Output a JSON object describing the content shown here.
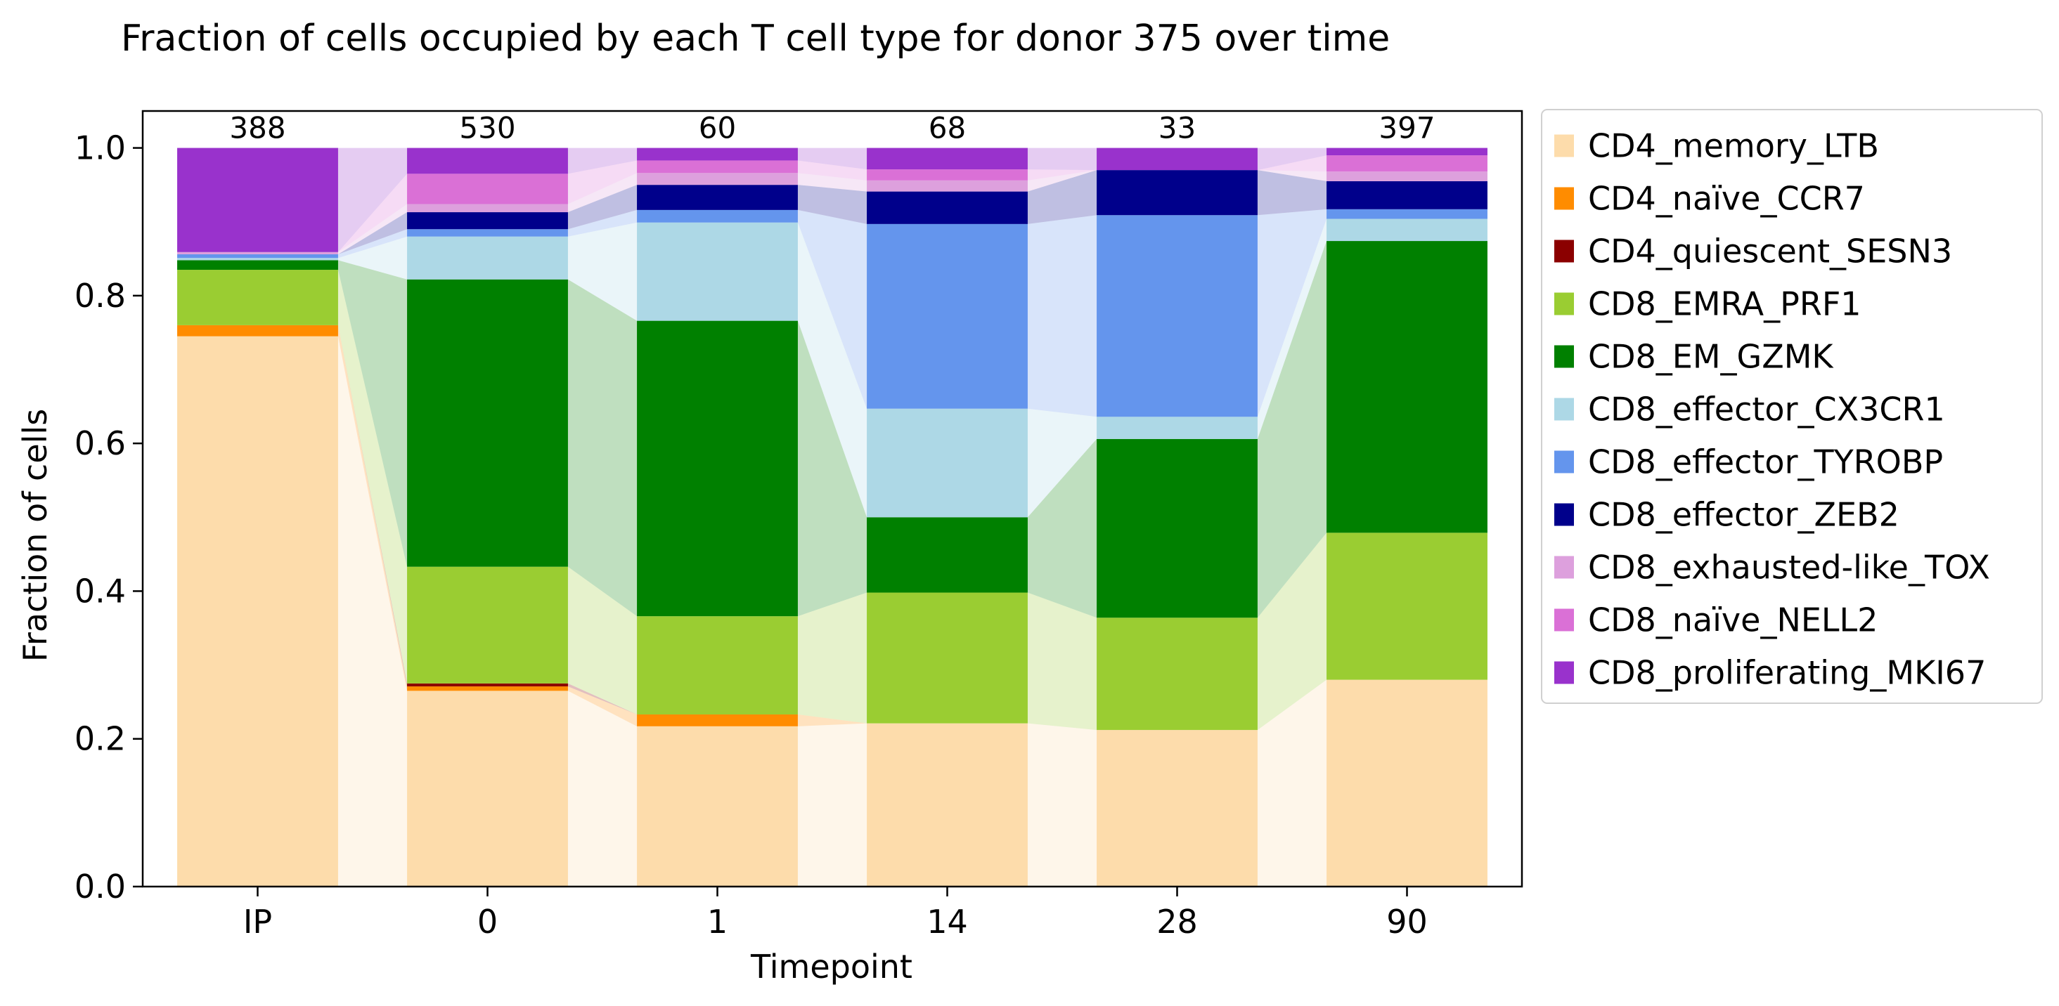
{
  "chart_data": {
    "type": "bar",
    "stacked": true,
    "title": "Fraction of cells occupied by each T cell type for donor 375 over time",
    "xlabel": "Timepoint",
    "ylabel": "Fraction of cells",
    "ylim": [
      0,
      1.05
    ],
    "yticks": [
      "0.0",
      "0.2",
      "0.4",
      "0.6",
      "0.8",
      "1.0"
    ],
    "categories": [
      "IP",
      "0",
      "1",
      "14",
      "28",
      "90"
    ],
    "counts": [
      "388",
      "530",
      "60",
      "68",
      "33",
      "397"
    ],
    "legend_position": "outside-right",
    "series": [
      {
        "name": "CD4_memory_LTB",
        "color": "#FDDCAB",
        "values": [
          0.745,
          0.265,
          0.217,
          0.221,
          0.212,
          0.28
        ]
      },
      {
        "name": "CD4_naïve_CCR7",
        "color": "#FF8C00",
        "values": [
          0.015,
          0.006,
          0.016,
          0.0,
          0.0,
          0.0
        ]
      },
      {
        "name": "CD4_quiescent_SESN3",
        "color": "#8B0000",
        "values": [
          0.0,
          0.004,
          0.0,
          0.0,
          0.0,
          0.0
        ]
      },
      {
        "name": "CD8_EMRA_PRF1",
        "color": "#9ACD32",
        "values": [
          0.075,
          0.158,
          0.133,
          0.177,
          0.152,
          0.199
        ]
      },
      {
        "name": "CD8_EM_GZMK",
        "color": "#008000",
        "values": [
          0.013,
          0.389,
          0.4,
          0.102,
          0.242,
          0.395
        ]
      },
      {
        "name": "CD8_effector_CX3CR1",
        "color": "#ADD8E6",
        "values": [
          0.003,
          0.058,
          0.133,
          0.147,
          0.03,
          0.03
        ]
      },
      {
        "name": "CD8_effector_TYROBP",
        "color": "#6495ED",
        "values": [
          0.005,
          0.01,
          0.017,
          0.25,
          0.273,
          0.013
        ]
      },
      {
        "name": "CD8_effector_ZEB2",
        "color": "#00008B",
        "values": [
          0.0,
          0.023,
          0.034,
          0.044,
          0.061,
          0.038
        ]
      },
      {
        "name": "CD8_exhausted-like_TOX",
        "color": "#DDA0DD",
        "values": [
          0.003,
          0.011,
          0.016,
          0.015,
          0.0,
          0.013
        ]
      },
      {
        "name": "CD8_naïve_NELL2",
        "color": "#DA70D6",
        "values": [
          0.0,
          0.041,
          0.017,
          0.015,
          0.0,
          0.022
        ]
      },
      {
        "name": "CD8_proliferating_MKI67",
        "color": "#9932CC",
        "values": [
          0.141,
          0.035,
          0.017,
          0.029,
          0.03,
          0.01
        ]
      }
    ]
  }
}
